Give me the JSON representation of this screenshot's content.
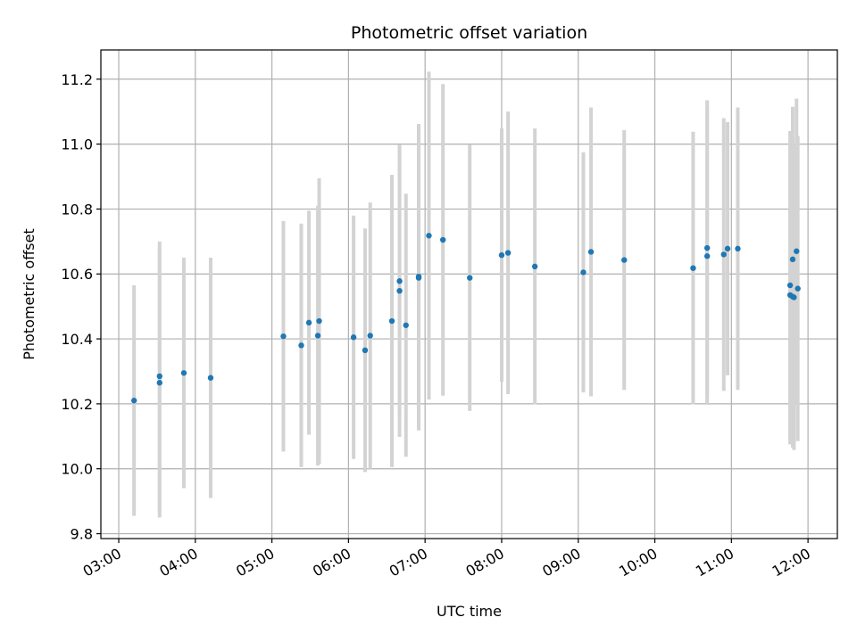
{
  "chart_data": {
    "type": "scatter",
    "title": "Photometric offset variation",
    "xlabel": "UTC time",
    "ylabel": "Photometric offset",
    "x_tick_labels": [
      "03:00",
      "04:00",
      "05:00",
      "06:00",
      "07:00",
      "08:00",
      "09:00",
      "10:00",
      "11:00",
      "12:00"
    ],
    "y_tick_labels": [
      "9.8",
      "10.0",
      "10.2",
      "10.4",
      "10.6",
      "10.8",
      "11.0",
      "11.2"
    ],
    "xlim": [
      "02:46",
      "12:23"
    ],
    "ylim": [
      9.785,
      11.29
    ],
    "grid": true,
    "colors": {
      "points": "#1f77b4",
      "error_bars": "#d3d3d3",
      "grid": "#b0b0b0"
    },
    "series": [
      {
        "x": [
          "03:12",
          "03:32",
          "03:32",
          "03:51",
          "04:12",
          "05:09",
          "05:23",
          "05:29",
          "05:36",
          "05:37",
          "06:04",
          "06:13",
          "06:17",
          "06:34",
          "06:40",
          "06:40",
          "06:45",
          "06:55",
          "06:55",
          "07:03",
          "07:14",
          "07:35",
          "08:00",
          "08:05",
          "08:26",
          "09:04",
          "09:10",
          "09:36",
          "10:30",
          "10:41",
          "10:41",
          "10:54",
          "10:57",
          "11:05",
          "11:46",
          "11:46",
          "11:48",
          "11:48",
          "11:49",
          "11:51",
          "11:52"
        ],
        "y": [
          10.21,
          10.265,
          10.285,
          10.295,
          10.28,
          10.408,
          10.38,
          10.45,
          10.41,
          10.455,
          10.405,
          10.365,
          10.41,
          10.455,
          10.548,
          10.578,
          10.442,
          10.588,
          10.592,
          10.718,
          10.705,
          10.588,
          10.658,
          10.665,
          10.623,
          10.605,
          10.668,
          10.643,
          10.618,
          10.655,
          10.68,
          10.66,
          10.678,
          10.678,
          10.565,
          10.535,
          10.645,
          10.53,
          10.528,
          10.67,
          10.555
        ],
        "yerr": [
          0.355,
          0.415,
          0.415,
          0.355,
          0.37,
          0.355,
          0.375,
          0.345,
          0.4,
          0.44,
          0.375,
          0.375,
          0.41,
          0.45,
          0.45,
          0.42,
          0.405,
          0.47,
          0.47,
          0.505,
          0.48,
          0.41,
          0.39,
          0.435,
          0.425,
          0.37,
          0.445,
          0.4,
          0.42,
          0.455,
          0.455,
          0.42,
          0.39,
          0.435,
          0.475,
          0.46,
          0.47,
          0.465,
          0.47,
          0.47,
          0.47
        ]
      }
    ]
  }
}
